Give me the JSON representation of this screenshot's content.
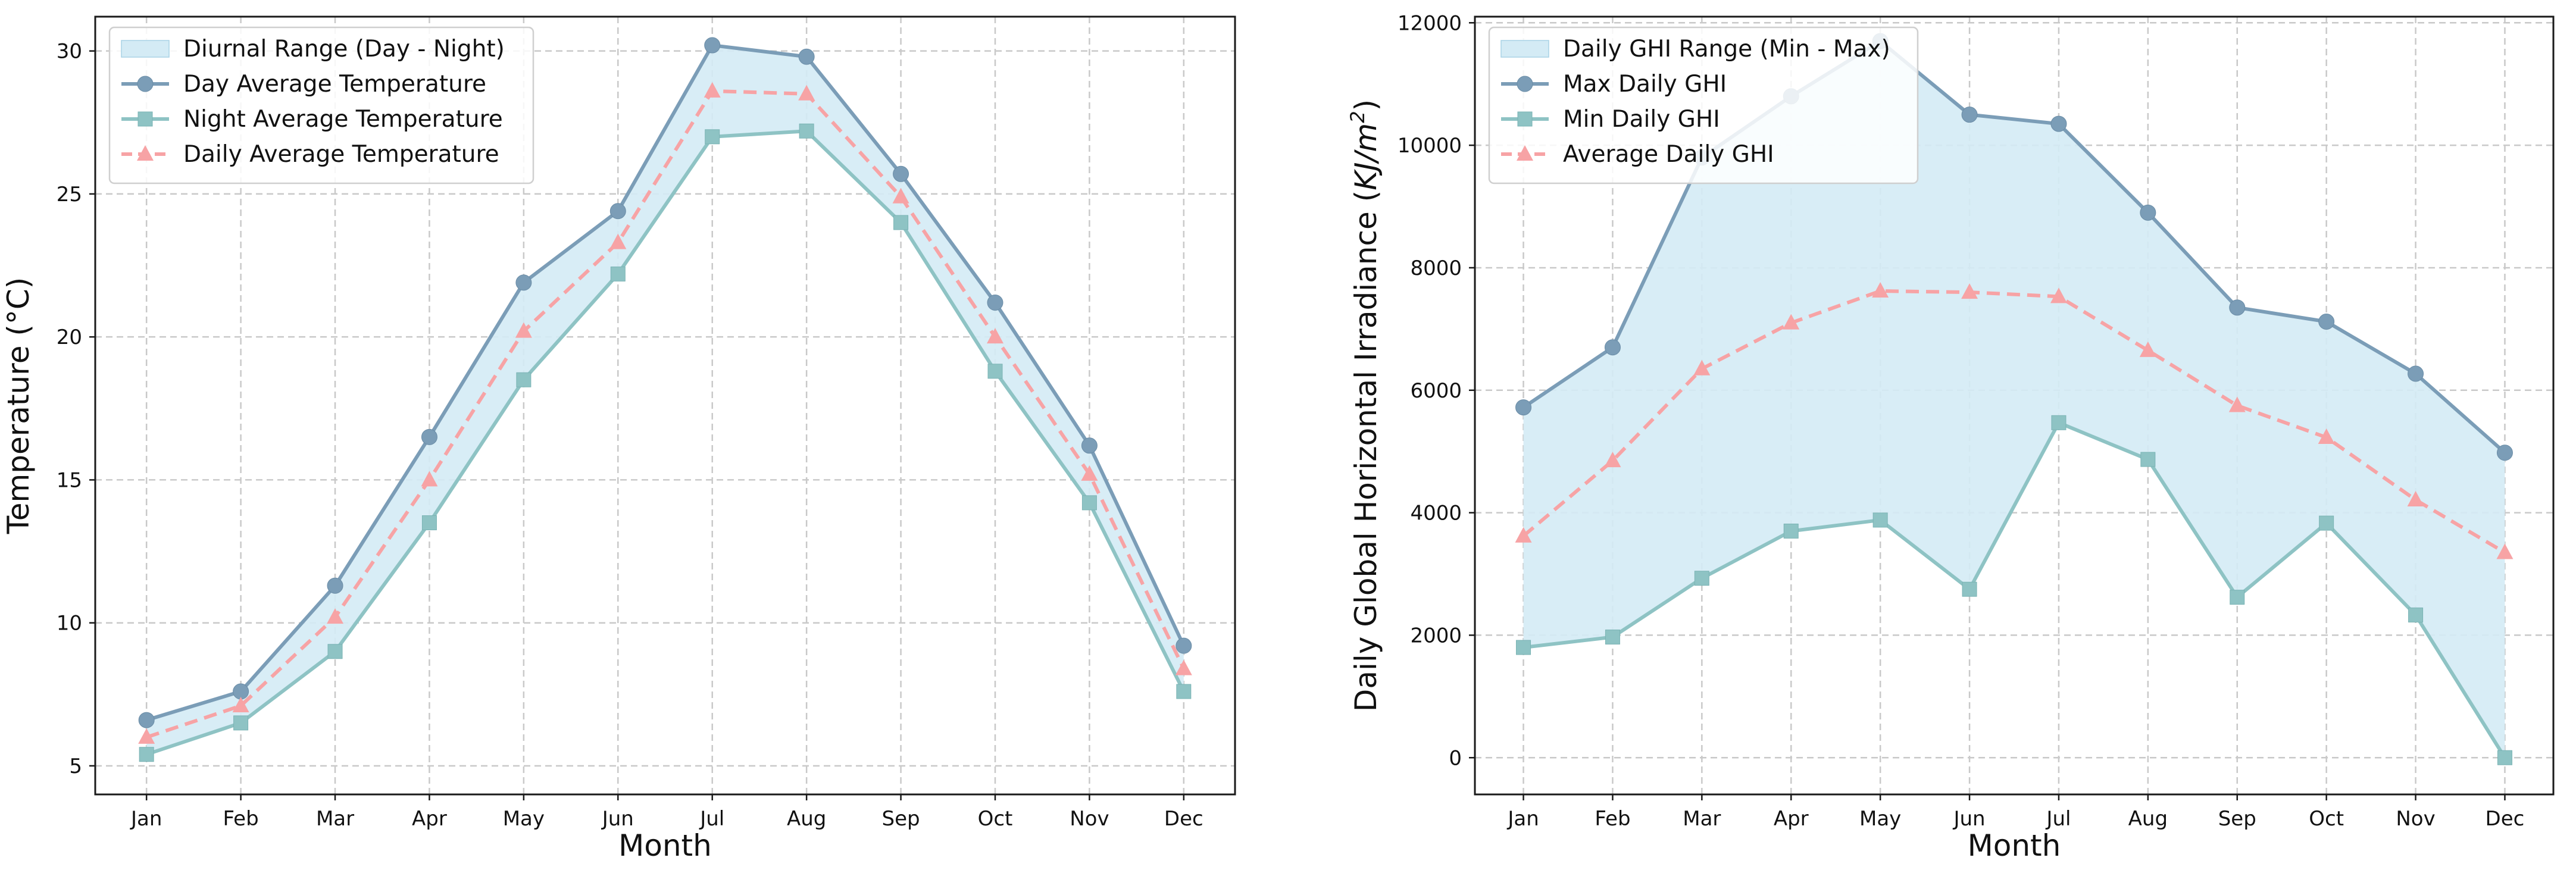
{
  "chart_data": [
    {
      "type": "line",
      "title": "",
      "xlabel": "Month",
      "ylabel": "Temperature (°C)",
      "categories": [
        "Jan",
        "Feb",
        "Mar",
        "Apr",
        "May",
        "Jun",
        "Jul",
        "Aug",
        "Sep",
        "Oct",
        "Nov",
        "Dec"
      ],
      "ylim": [
        4,
        31.2
      ],
      "yticks": [
        "5",
        "10",
        "15",
        "20",
        "25",
        "30"
      ],
      "ytick_values": [
        5,
        10,
        15,
        20,
        25,
        30
      ],
      "grid": true,
      "legend_position": "top-left",
      "band": {
        "name": "Diurnal Range (Day - Night)",
        "upper": "Day Average Temperature",
        "lower": "Night Average Temperature",
        "color": "#d4ebf5"
      },
      "series": [
        {
          "name": "Day Average Temperature",
          "marker": "circle",
          "dash": false,
          "color": "#7b9db7",
          "values": [
            6.6,
            7.6,
            11.3,
            16.5,
            21.9,
            24.4,
            30.2,
            29.8,
            25.7,
            21.2,
            16.2,
            9.2
          ]
        },
        {
          "name": "Night Average Temperature",
          "marker": "square",
          "dash": false,
          "color": "#8ec3c4",
          "values": [
            5.4,
            6.5,
            9.0,
            13.5,
            18.5,
            22.2,
            27.0,
            27.2,
            24.0,
            18.8,
            14.2,
            7.6
          ]
        },
        {
          "name": "Daily Average Temperature",
          "marker": "triangle",
          "dash": true,
          "color": "#f7a3a5",
          "values": [
            6.0,
            7.1,
            10.2,
            15.0,
            20.2,
            23.3,
            28.6,
            28.5,
            24.9,
            20.0,
            15.2,
            8.4
          ]
        }
      ]
    },
    {
      "type": "line",
      "title": "",
      "xlabel": "Month",
      "ylabel": "Daily Global Horizontal Irradiance (KJ/m²)",
      "ylabel_parts": {
        "prefix": "Daily Global Horizontal Irradiance (",
        "unit": "KJ/m",
        "exponent": "2",
        "suffix": ")"
      },
      "categories": [
        "Jan",
        "Feb",
        "Mar",
        "Apr",
        "May",
        "Jun",
        "Jul",
        "Aug",
        "Sep",
        "Oct",
        "Nov",
        "Dec"
      ],
      "ylim": [
        -600,
        12100
      ],
      "yticks": [
        "0",
        "2000",
        "4000",
        "6000",
        "8000",
        "10000",
        "12000"
      ],
      "ytick_values": [
        0,
        2000,
        4000,
        6000,
        8000,
        10000,
        12000
      ],
      "grid": true,
      "legend_position": "top-left",
      "band": {
        "name": "Daily GHI Range (Min - Max)",
        "upper": "Max Daily GHI",
        "lower": "Min Daily GHI",
        "color": "#d4ebf5"
      },
      "series": [
        {
          "name": "Max Daily GHI",
          "marker": "circle",
          "dash": false,
          "color": "#7b9db7",
          "values": [
            5720,
            6700,
            9800,
            10800,
            11700,
            10500,
            10350,
            8900,
            7350,
            7120,
            6270,
            4980
          ]
        },
        {
          "name": "Min Daily GHI",
          "marker": "square",
          "dash": false,
          "color": "#8ec3c4",
          "values": [
            1800,
            1970,
            2930,
            3700,
            3880,
            2750,
            5470,
            4870,
            2620,
            3830,
            2330,
            0
          ]
        },
        {
          "name": "Average Daily GHI",
          "marker": "triangle",
          "dash": true,
          "color": "#f7a3a5",
          "values": [
            3620,
            4850,
            6350,
            7100,
            7620,
            7600,
            7530,
            6650,
            5750,
            5230,
            4210,
            3350
          ]
        }
      ]
    }
  ]
}
